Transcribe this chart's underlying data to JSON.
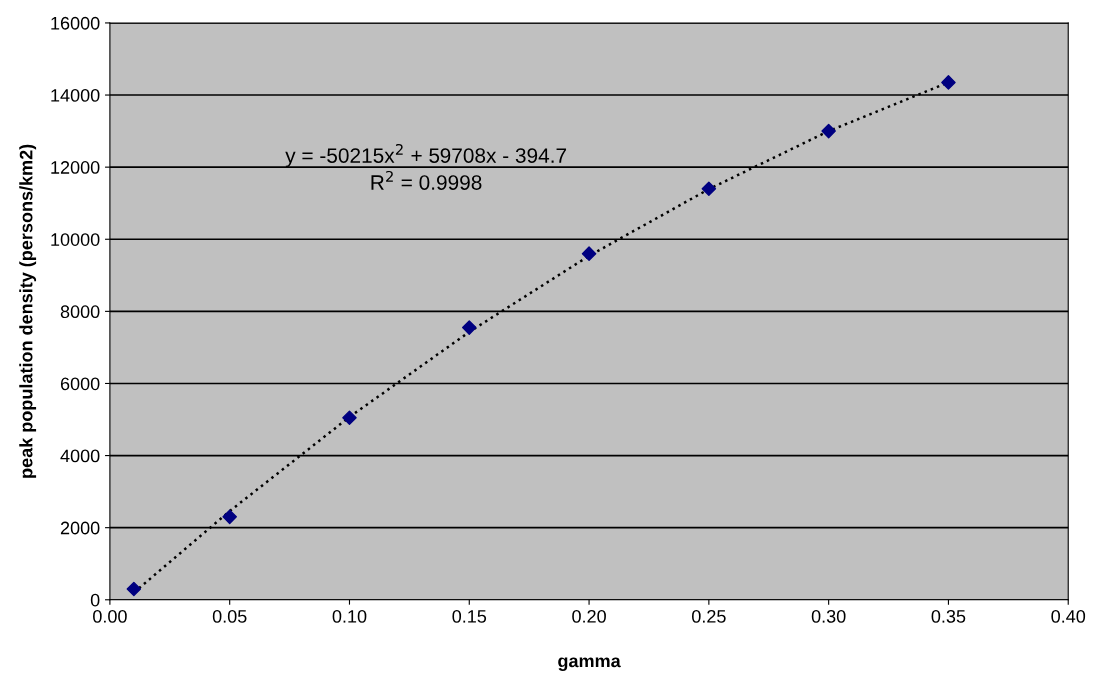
{
  "chart_data": {
    "type": "scatter",
    "xlabel": "gamma",
    "ylabel": "peak population density (persons/km2)",
    "series": [
      {
        "color": "#000080",
        "marker": "diamond",
        "x": [
          0.01,
          0.05,
          0.1,
          0.15,
          0.2,
          0.25,
          0.3,
          0.35
        ],
        "values": [
          300,
          2300,
          5050,
          7550,
          9600,
          11400,
          13000,
          14350
        ]
      },
      {
        "type": "line",
        "color": "#000000",
        "marker": "none",
        "line_style": "dotted",
        "x": [
          0.01,
          0.05,
          0.1,
          0.15,
          0.2,
          0.25,
          0.3,
          0.35
        ],
        "values": [
          200,
          2460,
          5070,
          7430,
          9540,
          11390,
          13000,
          14350
        ]
      }
    ],
    "annotations": [
      "y = -50215x$^{2}$ + 59708x - 394.7",
      "R$^{2}$ = 0.9998"
    ],
    "xlim": [
      0,
      0.4
    ],
    "xticks": [
      {
        "value": 0,
        "label": "0.00"
      },
      {
        "value": 0.05,
        "label": "0.05"
      },
      {
        "value": 0.1,
        "label": "0.10"
      },
      {
        "value": 0.15,
        "label": "0.15"
      },
      {
        "value": 0.2,
        "label": "0.20"
      },
      {
        "value": 0.25,
        "label": "0.25"
      },
      {
        "value": 0.3,
        "label": "0.30"
      },
      {
        "value": 0.35,
        "label": "0.35"
      },
      {
        "value": 0.4,
        "label": "0.40"
      }
    ],
    "ylim": [
      0,
      16000
    ],
    "yticks": [
      0,
      2000,
      4000,
      6000,
      8000,
      10000,
      12000,
      14000,
      16000
    ],
    "grid": "y",
    "legend": false
  }
}
